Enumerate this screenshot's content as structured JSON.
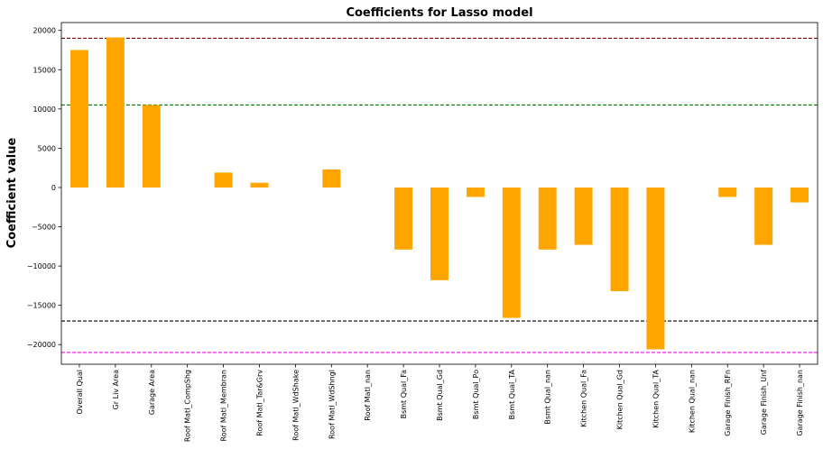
{
  "chart_data": {
    "type": "bar",
    "title": "Coefficients for Lasso model",
    "xlabel": "",
    "ylabel": "Coefficient value",
    "ylim": [
      -22500,
      21000
    ],
    "yticks": [
      20000,
      15000,
      10000,
      5000,
      0,
      -5000,
      -10000,
      -15000,
      -20000
    ],
    "grid": false,
    "bar_color": "#ffa500",
    "categories": [
      "Overall Qual",
      "Gr Liv Area",
      "Garage Area",
      "Roof Matl_CompShg",
      "Roof Matl_Membran",
      "Roof Matl_Tar&Grv",
      "Roof Matl_WdShake",
      "Roof Matl_WdShngl",
      "Roof Matl_nan",
      "Bsmt Qual_Fa",
      "Bsmt Qual_Gd",
      "Bsmt Qual_Po",
      "Bsmt Qual_TA",
      "Bsmt Qual_nan",
      "Kitchen Qual_Fa",
      "Kitchen Qual_Gd",
      "Kitchen Qual_TA",
      "Kitchen Qual_nan",
      "Garage Finish_RFn",
      "Garage Finish_Unf",
      "Garage Finish_nan"
    ],
    "values": [
      17500,
      19100,
      10500,
      0,
      1900,
      600,
      0,
      2300,
      0,
      -7900,
      -11800,
      -1200,
      -16600,
      -7900,
      -7300,
      -13200,
      -20600,
      0,
      -1200,
      -7300,
      -1900
    ],
    "reference_lines": [
      {
        "value": 19000,
        "color": "#8b0000",
        "style": "dashed"
      },
      {
        "value": 10500,
        "color": "#008000",
        "style": "dashed"
      },
      {
        "value": -17000,
        "color": "#000000",
        "style": "dashed"
      },
      {
        "value": -21000,
        "color": "#ff00ff",
        "style": "dashed"
      }
    ]
  }
}
